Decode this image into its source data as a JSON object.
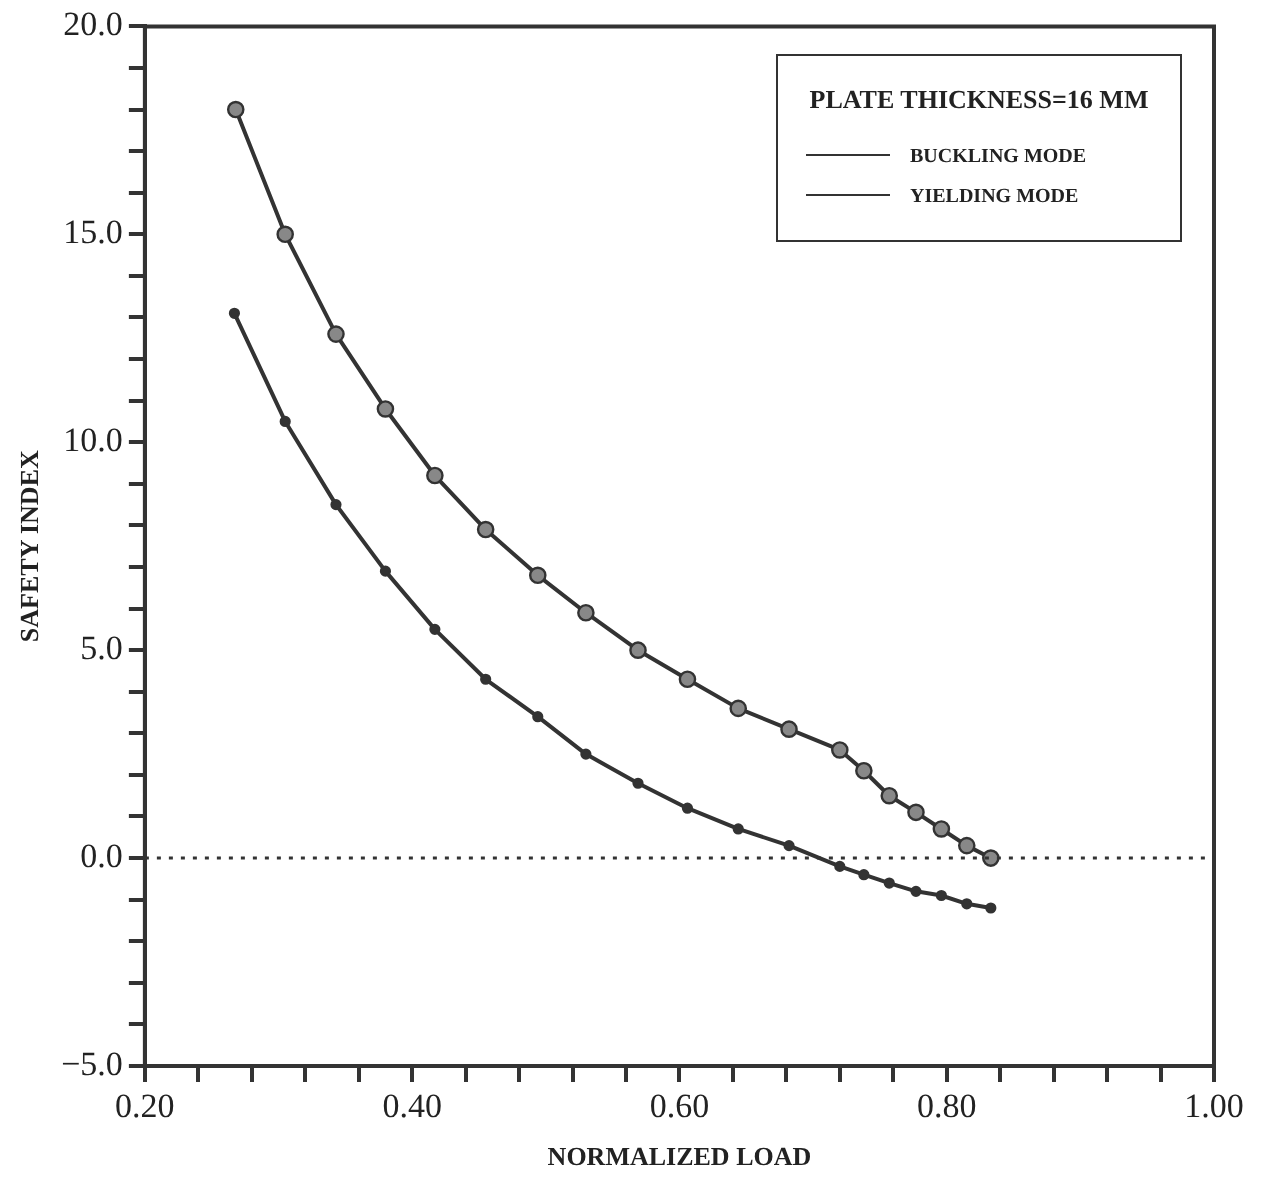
{
  "chart_data": {
    "type": "line",
    "xlabel": "NORMALIZED LOAD",
    "ylabel": "SAFETY INDEX",
    "legend_title": "PLATE THICKNESS=16 MM",
    "xlim": [
      0.2,
      1.0
    ],
    "xticks": [
      {
        "value": 0.2,
        "label": "0.20"
      },
      {
        "value": 0.24,
        "label": null
      },
      {
        "value": 0.28,
        "label": null
      },
      {
        "value": 0.32,
        "label": null
      },
      {
        "value": 0.36,
        "label": null
      },
      {
        "value": 0.4,
        "label": "0.40"
      },
      {
        "value": 0.44,
        "label": null
      },
      {
        "value": 0.48,
        "label": null
      },
      {
        "value": 0.52,
        "label": null
      },
      {
        "value": 0.56,
        "label": null
      },
      {
        "value": 0.6,
        "label": "0.60"
      },
      {
        "value": 0.64,
        "label": null
      },
      {
        "value": 0.68,
        "label": null
      },
      {
        "value": 0.72,
        "label": null
      },
      {
        "value": 0.76,
        "label": null
      },
      {
        "value": 0.8,
        "label": "0.80"
      },
      {
        "value": 0.84,
        "label": null
      },
      {
        "value": 0.88,
        "label": null
      },
      {
        "value": 0.92,
        "label": null
      },
      {
        "value": 0.96,
        "label": null
      },
      {
        "value": 1.0,
        "label": "1.00"
      }
    ],
    "ylim": [
      -5,
      20
    ],
    "yticks": [
      {
        "value": -5,
        "label": "−5.0"
      },
      {
        "value": -4,
        "label": null
      },
      {
        "value": -3,
        "label": null
      },
      {
        "value": -2,
        "label": null
      },
      {
        "value": -1,
        "label": null
      },
      {
        "value": 0,
        "label": "0.0"
      },
      {
        "value": 1,
        "label": null
      },
      {
        "value": 2,
        "label": null
      },
      {
        "value": 3,
        "label": null
      },
      {
        "value": 4,
        "label": null
      },
      {
        "value": 5,
        "label": "5.0"
      },
      {
        "value": 6,
        "label": null
      },
      {
        "value": 7,
        "label": null
      },
      {
        "value": 8,
        "label": null
      },
      {
        "value": 9,
        "label": null
      },
      {
        "value": 10,
        "label": "10.0"
      },
      {
        "value": 11,
        "label": null
      },
      {
        "value": 12,
        "label": null
      },
      {
        "value": 13,
        "label": null
      },
      {
        "value": 14,
        "label": null
      },
      {
        "value": 15,
        "label": "15.0"
      },
      {
        "value": 16,
        "label": null
      },
      {
        "value": 17,
        "label": null
      },
      {
        "value": 18,
        "label": null
      },
      {
        "value": 19,
        "label": null
      },
      {
        "value": 20,
        "label": "20.0"
      }
    ],
    "grid": false,
    "legend": "top right",
    "marker": "circle",
    "line_style": "solid",
    "ref_lines": [
      {
        "axis": "y",
        "value": 0,
        "color": "#333333",
        "line_style": "dotted"
      }
    ],
    "series": [
      {
        "name": "BUCKLING MODE",
        "color": "#333333",
        "x": [
          0.267,
          0.305,
          0.343,
          0.38,
          0.417,
          0.455,
          0.494,
          0.53,
          0.569,
          0.606,
          0.644,
          0.682,
          0.72,
          0.738,
          0.757,
          0.777,
          0.796,
          0.815,
          0.833
        ],
        "values": [
          13.1,
          10.5,
          8.5,
          6.9,
          5.5,
          4.3,
          3.4,
          2.5,
          1.8,
          1.2,
          0.7,
          0.3,
          -0.2,
          -0.4,
          -0.6,
          -0.8,
          -0.9,
          -1.1,
          -1.2
        ]
      },
      {
        "name": "YIELDING MODE",
        "color": "#333333",
        "x": [
          0.268,
          0.305,
          0.343,
          0.38,
          0.417,
          0.455,
          0.494,
          0.53,
          0.569,
          0.606,
          0.644,
          0.682,
          0.72,
          0.738,
          0.757,
          0.777,
          0.796,
          0.815,
          0.833
        ],
        "values": [
          18.0,
          15.0,
          12.6,
          10.8,
          9.2,
          7.9,
          6.8,
          5.9,
          5.0,
          4.3,
          3.6,
          3.1,
          2.6,
          2.1,
          1.5,
          1.1,
          0.7,
          0.3,
          0.0
        ]
      }
    ]
  }
}
